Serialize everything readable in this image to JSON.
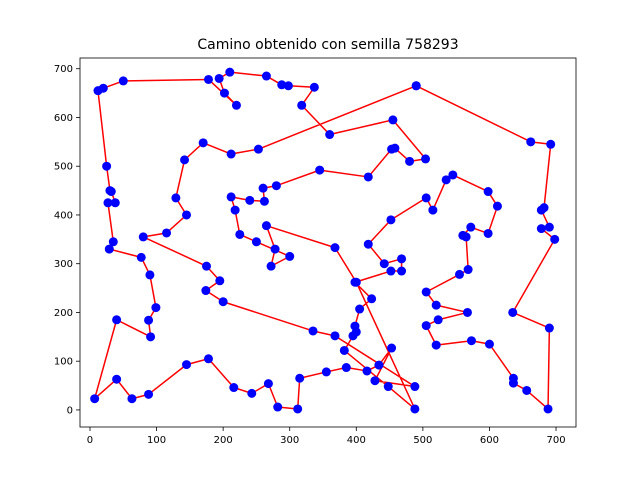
{
  "chart_data": {
    "type": "line",
    "title": "Camino obtenido con semilla 758293",
    "xlabel": "",
    "ylabel": "",
    "xlim": [
      -15,
      730
    ],
    "ylim": [
      -35,
      722
    ],
    "xticks": [
      0,
      100,
      200,
      300,
      400,
      500,
      600,
      700
    ],
    "yticks": [
      0,
      100,
      200,
      300,
      400,
      500,
      600,
      700
    ],
    "grid": false,
    "series": [
      {
        "line_color": "#ff0000",
        "marker_color": "#0000ff",
        "marker": "circle",
        "points": [
          [
            490,
            665
          ],
          [
            662,
            550
          ],
          [
            692,
            545
          ],
          [
            682,
            415
          ],
          [
            678,
            410
          ],
          [
            690,
            375
          ],
          [
            678,
            372
          ],
          [
            698,
            350
          ],
          [
            635,
            200
          ],
          [
            690,
            168
          ],
          [
            688,
            2
          ],
          [
            656,
            40
          ],
          [
            636,
            55
          ],
          [
            636,
            65
          ],
          [
            600,
            135
          ],
          [
            573,
            142
          ],
          [
            520,
            133
          ],
          [
            505,
            173
          ],
          [
            523,
            185
          ],
          [
            567,
            200
          ],
          [
            520,
            215
          ],
          [
            505,
            242
          ],
          [
            555,
            278
          ],
          [
            568,
            288
          ],
          [
            565,
            355
          ],
          [
            560,
            358
          ],
          [
            572,
            375
          ],
          [
            598,
            362
          ],
          [
            612,
            418
          ],
          [
            598,
            448
          ],
          [
            545,
            482
          ],
          [
            535,
            472
          ],
          [
            515,
            410
          ],
          [
            505,
            435
          ],
          [
            452,
            390
          ],
          [
            418,
            340
          ],
          [
            442,
            300
          ],
          [
            468,
            310
          ],
          [
            468,
            285
          ],
          [
            452,
            285
          ],
          [
            398,
            262
          ],
          [
            423,
            228
          ],
          [
            405,
            207
          ],
          [
            398,
            172
          ],
          [
            400,
            160
          ],
          [
            395,
            152
          ],
          [
            382,
            122
          ],
          [
            448,
            48
          ],
          [
            488,
            2
          ],
          [
            400,
            262
          ],
          [
            368,
            333
          ],
          [
            265,
            378
          ],
          [
            278,
            330
          ],
          [
            272,
            295
          ],
          [
            300,
            315
          ],
          [
            250,
            345
          ],
          [
            225,
            360
          ],
          [
            218,
            410
          ],
          [
            212,
            437
          ],
          [
            240,
            430
          ],
          [
            262,
            428
          ],
          [
            260,
            455
          ],
          [
            280,
            460
          ],
          [
            345,
            492
          ],
          [
            418,
            478
          ],
          [
            453,
            535
          ],
          [
            458,
            537
          ],
          [
            480,
            510
          ],
          [
            504,
            515
          ],
          [
            455,
            595
          ],
          [
            360,
            565
          ],
          [
            318,
            625
          ],
          [
            337,
            662
          ],
          [
            298,
            665
          ],
          [
            288,
            667
          ],
          [
            265,
            685
          ],
          [
            210,
            693
          ],
          [
            194,
            680
          ],
          [
            202,
            650
          ],
          [
            220,
            625
          ],
          [
            178,
            678
          ],
          [
            50,
            675
          ],
          [
            20,
            660
          ],
          [
            12,
            655
          ],
          [
            25,
            500
          ],
          [
            30,
            450
          ],
          [
            32,
            448
          ],
          [
            38,
            425
          ],
          [
            27,
            425
          ],
          [
            35,
            345
          ],
          [
            29,
            330
          ],
          [
            77,
            313
          ],
          [
            90,
            277
          ],
          [
            99,
            210
          ],
          [
            88,
            184
          ],
          [
            91,
            150
          ],
          [
            40,
            185
          ],
          [
            7,
            23
          ],
          [
            40,
            63
          ],
          [
            63,
            23
          ],
          [
            88,
            32
          ],
          [
            145,
            93
          ],
          [
            178,
            105
          ],
          [
            216,
            46
          ],
          [
            243,
            34
          ],
          [
            268,
            54
          ],
          [
            282,
            6
          ],
          [
            312,
            2
          ],
          [
            315,
            65
          ],
          [
            355,
            78
          ],
          [
            385,
            87
          ],
          [
            416,
            80
          ],
          [
            434,
            92
          ],
          [
            453,
            127
          ],
          [
            428,
            60
          ],
          [
            488,
            48
          ],
          [
            368,
            152
          ],
          [
            335,
            162
          ],
          [
            200,
            222
          ],
          [
            174,
            245
          ],
          [
            195,
            265
          ],
          [
            175,
            295
          ],
          [
            80,
            355
          ],
          [
            115,
            363
          ],
          [
            145,
            400
          ],
          [
            129,
            435
          ],
          [
            142,
            513
          ],
          [
            170,
            548
          ],
          [
            212,
            525
          ],
          [
            253,
            535
          ],
          [
            490,
            665
          ]
        ]
      }
    ]
  }
}
